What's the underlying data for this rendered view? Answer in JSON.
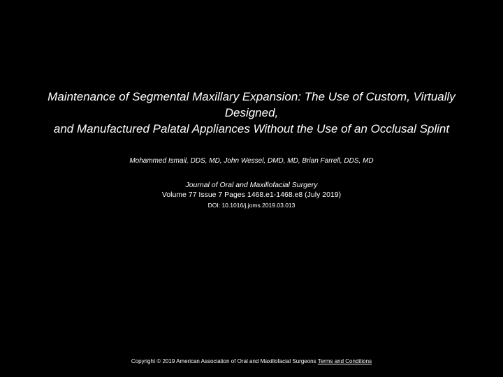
{
  "title_line1": "Maintenance of Segmental Maxillary Expansion: The Use of Custom, Virtually Designed,",
  "title_line2": "and Manufactured Palatal Appliances Without the Use of an Occlusal Splint",
  "authors": "Mohammed Ismail, DDS, MD, John Wessel, DMD, MD, Brian Farrell, DDS, MD",
  "journal": "Journal of Oral and Maxillofacial Surgery",
  "volume": "Volume 77 Issue 7 Pages 1468.e1-1468.e8 (July 2019)",
  "doi": "DOI: 10.1016/j.joms.2019.03.013",
  "copyright": "Copyright © 2019 American Association of Oral and Maxillofacial Surgeons",
  "terms": "Terms and Conditions",
  "colors": {
    "background": "#000000",
    "text": "#ffffff"
  },
  "fonts": {
    "title_size": 17,
    "authors_size": 10,
    "journal_size": 10.5,
    "doi_size": 8.5,
    "footer_size": 8
  }
}
